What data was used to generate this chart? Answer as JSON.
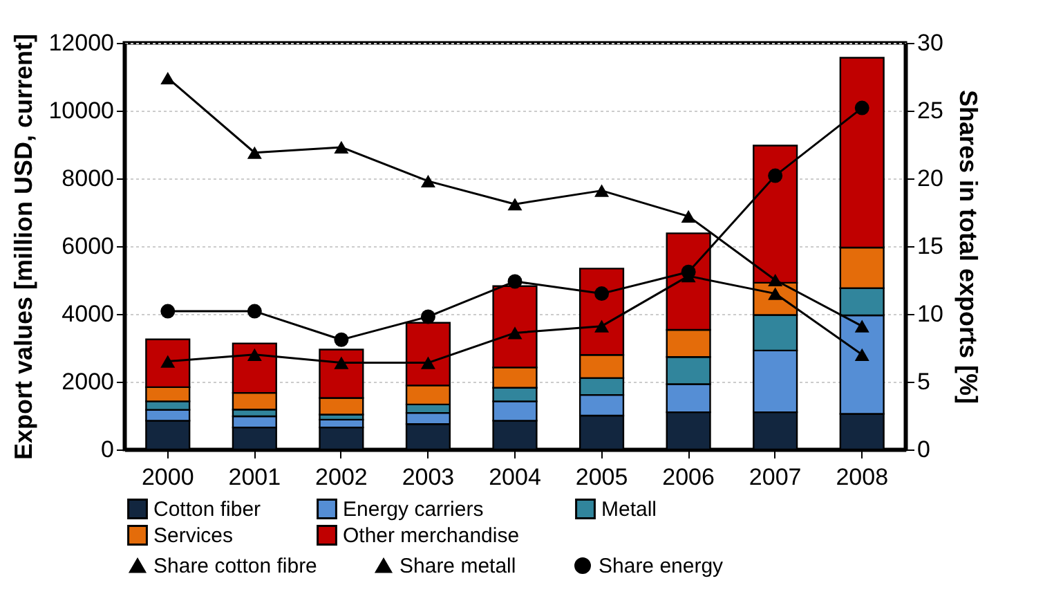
{
  "chart_data": {
    "type": "bar",
    "stacked": true,
    "categories": [
      "2000",
      "2001",
      "2002",
      "2003",
      "2004",
      "2005",
      "2006",
      "2007",
      "2008"
    ],
    "ylabel": "Export values [million USD, current]",
    "y2label": "Shares in total exports [%]",
    "ylim": [
      0,
      12000
    ],
    "yticks": [
      0,
      2000,
      4000,
      6000,
      8000,
      10000,
      12000
    ],
    "y2lim": [
      0,
      30
    ],
    "y2ticks": [
      0,
      5,
      10,
      15,
      20,
      25,
      30
    ],
    "grid": "y",
    "legend": "bottom",
    "series": [
      {
        "name": "Cotton fiber",
        "type": "bar",
        "color": "#12263f",
        "values": [
          850,
          650,
          650,
          750,
          850,
          1000,
          1100,
          1100,
          1050
        ]
      },
      {
        "name": "Energy carriers",
        "type": "bar",
        "color": "#558ed5",
        "values": [
          320,
          330,
          230,
          330,
          570,
          610,
          830,
          1820,
          2910
        ]
      },
      {
        "name": "Metall",
        "type": "bar",
        "color": "#31859c",
        "values": [
          250,
          200,
          150,
          250,
          400,
          500,
          800,
          1050,
          800
        ]
      },
      {
        "name": "Services",
        "type": "bar",
        "color": "#e46c0a",
        "values": [
          420,
          490,
          490,
          560,
          600,
          680,
          800,
          950,
          1200
        ]
      },
      {
        "name": "Other merchandise",
        "type": "bar",
        "color": "#c00000",
        "values": [
          1410,
          1460,
          1430,
          1850,
          2400,
          2550,
          2850,
          4050,
          5600
        ]
      },
      {
        "name": "Share cotton fibre",
        "type": "line",
        "axis": "y2",
        "color": "#000000",
        "marker": "triangle",
        "values": [
          27.4,
          21.9,
          22.3,
          19.8,
          18.1,
          19.1,
          17.2,
          12.5,
          9.1
        ]
      },
      {
        "name": "Share metall",
        "type": "line",
        "axis": "y2",
        "color": "#000000",
        "marker": "triangle",
        "values": [
          6.5,
          7.0,
          6.4,
          6.4,
          8.6,
          9.1,
          12.8,
          11.5,
          7.0
        ]
      },
      {
        "name": "Share energy",
        "type": "line",
        "axis": "y2",
        "color": "#000000",
        "marker": "circle",
        "values": [
          10.2,
          10.2,
          8.1,
          9.8,
          12.4,
          11.5,
          13.1,
          20.2,
          25.2
        ]
      }
    ]
  }
}
